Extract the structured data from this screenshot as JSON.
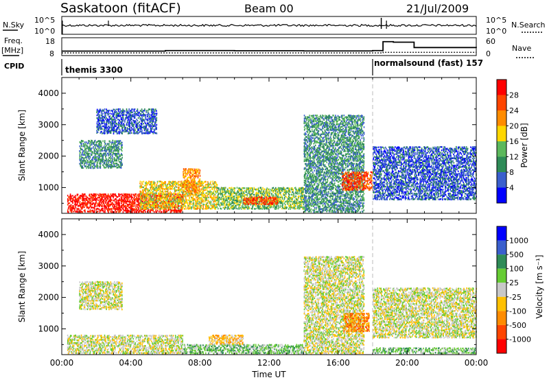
{
  "header": {
    "title": "Saskatoon (fitACF)",
    "beam": "Beam 00",
    "date": "21/Jul/2009"
  },
  "nsky_panel": {
    "left_label": "N.Sky",
    "left_ticks": [
      "10^5",
      "10^0"
    ],
    "right_ticks": [
      "10^5",
      "10^0"
    ],
    "right_label": "N.Search"
  },
  "freq_panel": {
    "left_label_1": "Freq.",
    "left_label_2": "[MHz]",
    "left_ticks": [
      "18",
      "8"
    ],
    "right_ticks": [
      "60",
      "0"
    ],
    "right_label": "Nave",
    "freq_mhz": [
      [
        0,
        10.5
      ],
      [
        6,
        10.8
      ],
      [
        10,
        10.7
      ],
      [
        14,
        10.6
      ],
      [
        18,
        10.8
      ],
      [
        18.6,
        15.8
      ],
      [
        19.2,
        15.5
      ],
      [
        20.4,
        12.5
      ],
      [
        24,
        12.3
      ]
    ],
    "nave": [
      [
        0,
        9
      ],
      [
        4,
        9
      ],
      [
        8,
        9
      ],
      [
        12,
        9
      ],
      [
        16,
        9
      ],
      [
        18,
        9
      ],
      [
        18.6,
        11
      ],
      [
        20,
        11
      ],
      [
        24,
        11
      ]
    ]
  },
  "cpid": {
    "label": "CPID",
    "mode1": "themis 3300",
    "mode2": "normalsound (fast) 157",
    "switch_hour": 18
  },
  "colors": {
    "power_scale": [
      "#0000ff",
      "#3a5fcd",
      "#2e8b57",
      "#5cb85c",
      "#ffd700",
      "#ff8c00",
      "#ff4500",
      "#ff0000"
    ],
    "velocity_scale": [
      "#0000ff",
      "#3a5fcd",
      "#2e8b57",
      "#66cc33",
      "#c8c8c8",
      "#ffc000",
      "#ff8c00",
      "#ff4500",
      "#ff0000"
    ]
  },
  "chart_data": [
    {
      "type": "heatmap",
      "quantity": "power",
      "ylabel": "Slant Range [km]",
      "ylim": [
        180,
        4500
      ],
      "yticks": [
        "1000",
        "2000",
        "3000",
        "4000"
      ],
      "xlim": [
        0,
        24
      ],
      "colorbar_label": "Power [dB]",
      "colorbar_ticks": [
        "4",
        "8",
        "12",
        "16",
        "20",
        "24",
        "28"
      ],
      "regions": [
        {
          "t0": 0.3,
          "t1": 7.0,
          "r0": 200,
          "r1": 800,
          "level": 7
        },
        {
          "t0": 1.0,
          "t1": 3.5,
          "r0": 1600,
          "r1": 2500,
          "level": 2
        },
        {
          "t0": 2.0,
          "t1": 5.5,
          "r0": 2700,
          "r1": 3500,
          "level": 1
        },
        {
          "t0": 4.5,
          "t1": 9.0,
          "r0": 300,
          "r1": 1200,
          "level": 4
        },
        {
          "t0": 7.0,
          "t1": 8.0,
          "r0": 800,
          "r1": 1600,
          "level": 5
        },
        {
          "t0": 9.0,
          "t1": 14.0,
          "r0": 300,
          "r1": 1000,
          "level": 3
        },
        {
          "t0": 10.5,
          "t1": 12.5,
          "r0": 450,
          "r1": 700,
          "level": 6
        },
        {
          "t0": 14.0,
          "t1": 17.5,
          "r0": 200,
          "r1": 3300,
          "level": 2
        },
        {
          "t0": 16.2,
          "t1": 18.0,
          "r0": 900,
          "r1": 1500,
          "level": 6
        },
        {
          "t0": 18.0,
          "t1": 24.0,
          "r0": 600,
          "r1": 2300,
          "level": 1
        }
      ]
    },
    {
      "type": "heatmap",
      "quantity": "velocity",
      "ylabel": "Slant Range [km]",
      "ylim": [
        180,
        4500
      ],
      "yticks": [
        "1000",
        "2000",
        "3000",
        "4000"
      ],
      "xlim": [
        0,
        24
      ],
      "xticks": [
        "00:00",
        "04:00",
        "08:00",
        "12:00",
        "16:00",
        "20:00",
        "00:00"
      ],
      "xlabel": "Time UT",
      "colorbar_label": "Velocity [m s⁻¹]",
      "colorbar_ticks": [
        "1000",
        "500",
        "100",
        "25",
        "-25",
        "-100",
        "-500",
        "-1000"
      ],
      "regions": [
        {
          "t0": 0.3,
          "t1": 7.0,
          "r0": 200,
          "r1": 800,
          "level": 4
        },
        {
          "t0": 1.0,
          "t1": 3.5,
          "r0": 1600,
          "r1": 2500,
          "level": 4
        },
        {
          "t0": 7.0,
          "t1": 14.0,
          "r0": 200,
          "r1": 500,
          "level": 3
        },
        {
          "t0": 8.5,
          "t1": 10.5,
          "r0": 500,
          "r1": 800,
          "level": 5
        },
        {
          "t0": 14.0,
          "t1": 17.5,
          "r0": 200,
          "r1": 3300,
          "level": 4
        },
        {
          "t0": 16.3,
          "t1": 17.8,
          "r0": 900,
          "r1": 1500,
          "level": 6
        },
        {
          "t0": 18.0,
          "t1": 24.0,
          "r0": 200,
          "r1": 400,
          "level": 3
        },
        {
          "t0": 18.0,
          "t1": 24.0,
          "r0": 700,
          "r1": 2300,
          "level": 4
        }
      ]
    }
  ]
}
